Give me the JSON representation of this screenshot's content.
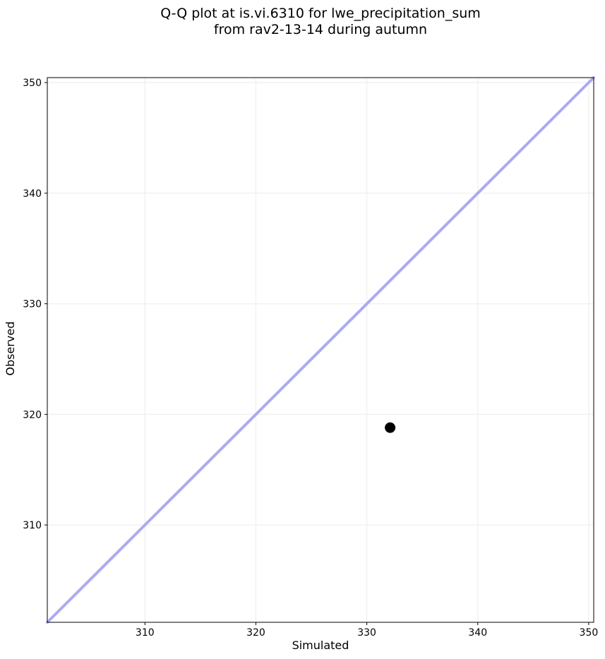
{
  "figure": {
    "background": "#ffffff",
    "title_line1": "Q-Q plot at is.vi.6310 for lwe_precipitation_sum",
    "title_line2": "from rav2-13-14 during autumn"
  },
  "chart_data": {
    "type": "scatter",
    "title": "Q-Q plot at is.vi.6310 for lwe_precipitation_sum\nfrom rav2-13-14 during autumn",
    "xlabel": "Simulated",
    "ylabel": "Observed",
    "xlim": [
      301.2,
      350.45
    ],
    "ylim": [
      301.2,
      350.45
    ],
    "xticks": [
      310,
      320,
      330,
      340,
      350
    ],
    "yticks": [
      310,
      320,
      330,
      340,
      350
    ],
    "grid": true,
    "grid_color": "#f0f0f0",
    "spine_color": "#000000",
    "tick_label_color": "#000000",
    "legend": "none",
    "identity_line": {
      "x": [
        301.2,
        350.45
      ],
      "y": [
        301.2,
        350.45
      ],
      "color": "#aaabf2",
      "width": 4
    },
    "points": [
      {
        "x": 332.1,
        "y": 318.8
      }
    ],
    "point_color": "#000000",
    "point_radius": 7.5
  }
}
